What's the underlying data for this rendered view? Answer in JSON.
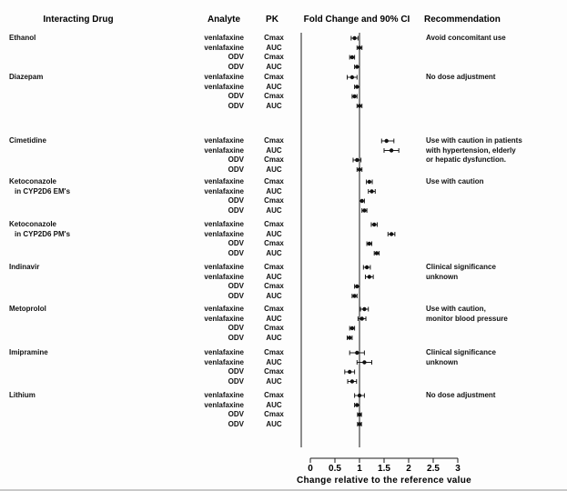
{
  "headers": {
    "drug": "Interacting Drug",
    "analyte": "Analyte",
    "pk": "PK",
    "fold_change": "Fold Change and 90% CI",
    "recommendation": "Recommendation"
  },
  "chart_data": {
    "type": "scatter",
    "subtype": "forest-plot",
    "title": "",
    "xlabel": "Change relative to the reference value",
    "xlim": [
      0,
      3
    ],
    "reference_line": 1,
    "ticks": [
      0,
      0.5,
      1,
      1.5,
      2,
      2.5,
      3
    ],
    "grid": false,
    "groups": [
      {
        "drug": [
          "Ethanol"
        ],
        "recommendation": [
          "Avoid concomitant use"
        ],
        "rows": [
          {
            "analyte": "venlafaxine",
            "pk": "Cmax",
            "value": 0.9,
            "lo": 0.83,
            "hi": 0.97
          },
          {
            "analyte": "venlafaxine",
            "pk": "AUC",
            "value": 1.0,
            "lo": 0.95,
            "hi": 1.05
          },
          {
            "analyte": "ODV",
            "pk": "Cmax",
            "value": 0.85,
            "lo": 0.8,
            "hi": 0.9
          },
          {
            "analyte": "ODV",
            "pk": "AUC",
            "value": 0.95,
            "lo": 0.9,
            "hi": 1.0
          }
        ]
      },
      {
        "drug": [
          "Diazepam"
        ],
        "recommendation": [
          "No dose adjustment"
        ],
        "rows": [
          {
            "analyte": "venlafaxine",
            "pk": "Cmax",
            "value": 0.85,
            "lo": 0.75,
            "hi": 0.95
          },
          {
            "analyte": "venlafaxine",
            "pk": "AUC",
            "value": 0.95,
            "lo": 0.9,
            "hi": 1.0
          },
          {
            "analyte": "ODV",
            "pk": "Cmax",
            "value": 0.9,
            "lo": 0.85,
            "hi": 0.95
          },
          {
            "analyte": "ODV",
            "pk": "AUC",
            "value": 1.0,
            "lo": 0.95,
            "hi": 1.05
          }
        ]
      },
      {
        "drug": [
          "Cimetidine"
        ],
        "recommendation": [
          "Use with caution in patients",
          "with hypertension, elderly",
          "or hepatic dysfunction."
        ],
        "rows": [
          {
            "analyte": "venlafaxine",
            "pk": "Cmax",
            "value": 1.55,
            "lo": 1.45,
            "hi": 1.7
          },
          {
            "analyte": "venlafaxine",
            "pk": "AUC",
            "value": 1.65,
            "lo": 1.5,
            "hi": 1.8
          },
          {
            "analyte": "ODV",
            "pk": "Cmax",
            "value": 0.95,
            "lo": 0.87,
            "hi": 1.03
          },
          {
            "analyte": "ODV",
            "pk": "AUC",
            "value": 1.0,
            "lo": 0.95,
            "hi": 1.05
          }
        ]
      },
      {
        "drug": [
          "Ketoconazole",
          "in CYP2D6 EM's"
        ],
        "recommendation": [
          "Use with caution"
        ],
        "rows": [
          {
            "analyte": "venlafaxine",
            "pk": "Cmax",
            "value": 1.2,
            "lo": 1.14,
            "hi": 1.26
          },
          {
            "analyte": "venlafaxine",
            "pk": "AUC",
            "value": 1.25,
            "lo": 1.18,
            "hi": 1.32
          },
          {
            "analyte": "ODV",
            "pk": "Cmax",
            "value": 1.05,
            "lo": 1.0,
            "hi": 1.1
          },
          {
            "analyte": "ODV",
            "pk": "AUC",
            "value": 1.1,
            "lo": 1.05,
            "hi": 1.15
          }
        ]
      },
      {
        "drug": [
          "Ketoconazole",
          "in CYP2D6 PM's"
        ],
        "recommendation": [],
        "rows": [
          {
            "analyte": "venlafaxine",
            "pk": "Cmax",
            "value": 1.3,
            "lo": 1.24,
            "hi": 1.36
          },
          {
            "analyte": "venlafaxine",
            "pk": "AUC",
            "value": 1.65,
            "lo": 1.58,
            "hi": 1.72
          },
          {
            "analyte": "ODV",
            "pk": "Cmax",
            "value": 1.2,
            "lo": 1.15,
            "hi": 1.25
          },
          {
            "analyte": "ODV",
            "pk": "AUC",
            "value": 1.35,
            "lo": 1.3,
            "hi": 1.4
          }
        ]
      },
      {
        "drug": [
          "Indinavir"
        ],
        "recommendation": [
          "Clinical significance",
          "unknown"
        ],
        "rows": [
          {
            "analyte": "venlafaxine",
            "pk": "Cmax",
            "value": 1.15,
            "lo": 1.08,
            "hi": 1.22
          },
          {
            "analyte": "venlafaxine",
            "pk": "AUC",
            "value": 1.2,
            "lo": 1.12,
            "hi": 1.28
          },
          {
            "analyte": "ODV",
            "pk": "Cmax",
            "value": 0.95,
            "lo": 0.9,
            "hi": 1.0
          },
          {
            "analyte": "ODV",
            "pk": "AUC",
            "value": 0.9,
            "lo": 0.85,
            "hi": 0.95
          }
        ]
      },
      {
        "drug": [
          "Metoprolol"
        ],
        "recommendation": [
          "Use with caution,",
          "monitor blood pressure"
        ],
        "rows": [
          {
            "analyte": "venlafaxine",
            "pk": "Cmax",
            "value": 1.1,
            "lo": 1.02,
            "hi": 1.18
          },
          {
            "analyte": "venlafaxine",
            "pk": "AUC",
            "value": 1.05,
            "lo": 0.97,
            "hi": 1.13
          },
          {
            "analyte": "ODV",
            "pk": "Cmax",
            "value": 0.85,
            "lo": 0.8,
            "hi": 0.9
          },
          {
            "analyte": "ODV",
            "pk": "AUC",
            "value": 0.8,
            "lo": 0.75,
            "hi": 0.85
          }
        ]
      },
      {
        "drug": [
          "Imipramine"
        ],
        "recommendation": [
          "Clinical significance",
          "unknown"
        ],
        "rows": [
          {
            "analyte": "venlafaxine",
            "pk": "Cmax",
            "value": 0.95,
            "lo": 0.8,
            "hi": 1.1
          },
          {
            "analyte": "venlafaxine",
            "pk": "AUC",
            "value": 1.1,
            "lo": 0.95,
            "hi": 1.25
          },
          {
            "analyte": "ODV",
            "pk": "Cmax",
            "value": 0.8,
            "lo": 0.7,
            "hi": 0.9
          },
          {
            "analyte": "ODV",
            "pk": "AUC",
            "value": 0.85,
            "lo": 0.76,
            "hi": 0.94
          }
        ]
      },
      {
        "drug": [
          "Lithium"
        ],
        "recommendation": [
          "No dose adjustment"
        ],
        "rows": [
          {
            "analyte": "venlafaxine",
            "pk": "Cmax",
            "value": 1.0,
            "lo": 0.9,
            "hi": 1.1
          },
          {
            "analyte": "venlafaxine",
            "pk": "AUC",
            "value": 0.95,
            "lo": 0.9,
            "hi": 1.0
          },
          {
            "analyte": "ODV",
            "pk": "Cmax",
            "value": 1.0,
            "lo": 0.96,
            "hi": 1.04
          },
          {
            "analyte": "ODV",
            "pk": "AUC",
            "value": 1.0,
            "lo": 0.96,
            "hi": 1.04
          }
        ]
      }
    ]
  }
}
